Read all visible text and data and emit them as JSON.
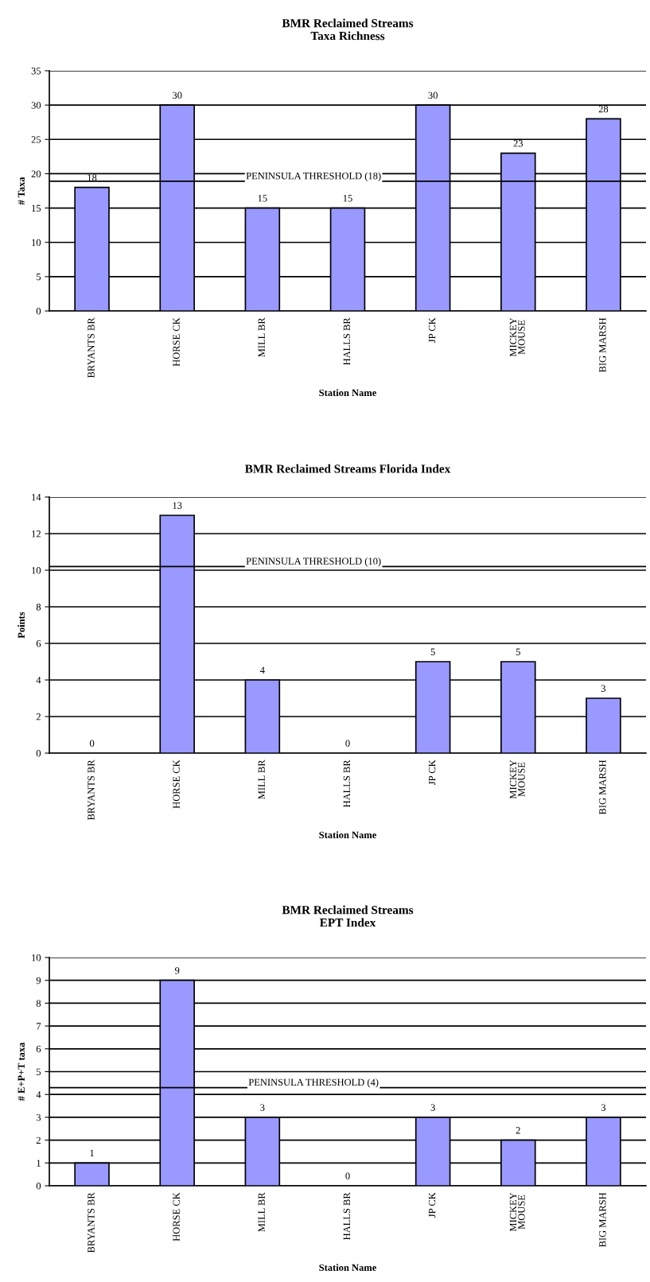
{
  "chart_data": [
    {
      "type": "bar",
      "title": "BMR Reclaimed Streams\nTaxa Richness",
      "xlabel": "Station Name",
      "ylabel": "# Taxa",
      "categories": [
        "BRYANTS BR",
        "HORSE CK",
        "MILL BR",
        "HALLS BR",
        "JP CK",
        "MICKEY\nMOUSE",
        "BIG MARSH"
      ],
      "values": [
        18,
        30,
        15,
        15,
        30,
        23,
        28
      ],
      "color": "#9999ff",
      "ylim": [
        0,
        35
      ],
      "yticks": [
        0,
        5,
        10,
        15,
        20,
        25,
        30,
        35
      ],
      "grid": "y",
      "data_labels": true,
      "ref_lines": [
        {
          "axis": "y",
          "value": 18.9,
          "label": "PENINSULA THRESHOLD (18)"
        }
      ]
    },
    {
      "type": "bar",
      "title": "BMR Reclaimed Streams Florida Index",
      "xlabel": "Station Name",
      "ylabel": "Points",
      "categories": [
        "BRYANTS BR",
        "HORSE CK",
        "MILL BR",
        "HALLS BR",
        "JP CK",
        "MICKEY\nMOUSE",
        "BIG MARSH"
      ],
      "values": [
        0,
        13,
        4,
        0,
        5,
        5,
        3
      ],
      "color": "#9999ff",
      "ylim": [
        0,
        14
      ],
      "yticks": [
        0,
        2,
        4,
        6,
        8,
        10,
        12,
        14
      ],
      "grid": "y",
      "data_labels": true,
      "ref_lines": [
        {
          "axis": "y",
          "value": 10.2,
          "label": "PENINSULA THRESHOLD (10)"
        }
      ]
    },
    {
      "type": "bar",
      "title": "BMR Reclaimed Streams\nEPT Index",
      "xlabel": "Station Name",
      "ylabel": "# E+P+T taxa",
      "categories": [
        "BRYANTS BR",
        "HORSE CK",
        "MILL BR",
        "HALLS BR",
        "JP CK",
        "MICKEY\nMOUSE",
        "BIG MARSH"
      ],
      "values": [
        1,
        9,
        3,
        0,
        3,
        2,
        3
      ],
      "color": "#9999ff",
      "ylim": [
        0,
        10
      ],
      "yticks": [
        0,
        1,
        2,
        3,
        4,
        5,
        6,
        7,
        8,
        9,
        10
      ],
      "grid": "y",
      "data_labels": true,
      "ref_lines": [
        {
          "axis": "y",
          "value": 4.3,
          "label": "PENINSULA THRESHOLD (4)"
        }
      ]
    }
  ]
}
